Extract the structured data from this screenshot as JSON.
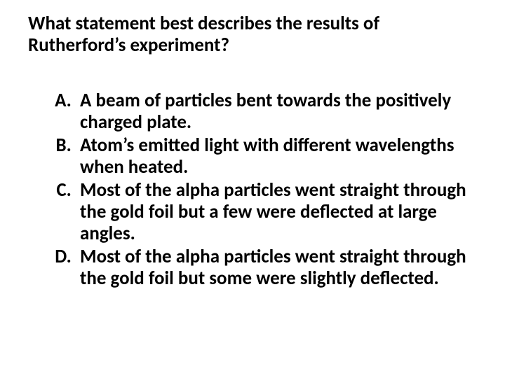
{
  "question": "What statement best describes the results of Rutherford’s experiment?",
  "options": [
    "A beam of particles bent towards the positively charged plate.",
    "Atom’s emitted light with different wavelengths when heated.",
    "Most of the alpha particles went straight through the gold foil but a few were deflected at large angles.",
    "Most of the alpha particles went straight through the gold foil but some were slightly deflected."
  ],
  "colors": {
    "background": "#ffffff",
    "text": "#000000"
  },
  "typography": {
    "question_fontsize_pt": 20,
    "option_fontsize_pt": 20,
    "weight": 700,
    "family": "Calibri"
  }
}
